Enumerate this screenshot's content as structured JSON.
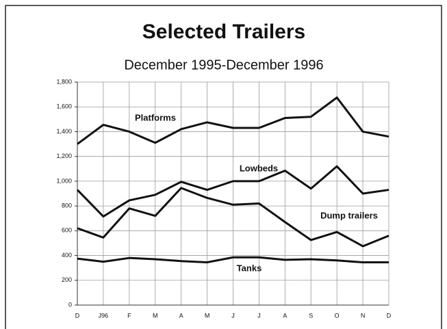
{
  "chart_data": {
    "type": "line",
    "title": "Selected Trailers",
    "subtitle": "December 1995-December 1996",
    "categories": [
      "D",
      "J96",
      "F",
      "M",
      "A",
      "M",
      "J",
      "J",
      "A",
      "S",
      "O",
      "N",
      "D"
    ],
    "series": [
      {
        "name": "Platforms",
        "color": "#111111",
        "values": [
          1300,
          1455,
          1400,
          1310,
          1420,
          1475,
          1430,
          1430,
          1510,
          1520,
          1675,
          1400,
          1360
        ]
      },
      {
        "name": "Lowbeds",
        "color": "#111111",
        "values": [
          930,
          715,
          845,
          890,
          995,
          930,
          1000,
          1000,
          1085,
          940,
          1120,
          900,
          930
        ]
      },
      {
        "name": "Dump trailers",
        "color": "#111111",
        "values": [
          620,
          545,
          780,
          720,
          945,
          865,
          810,
          820,
          670,
          525,
          590,
          475,
          560
        ]
      },
      {
        "name": "Tanks",
        "color": "#111111",
        "values": [
          375,
          350,
          380,
          370,
          355,
          345,
          385,
          385,
          365,
          370,
          360,
          345,
          345
        ]
      }
    ],
    "ylim": [
      0,
      1800
    ],
    "yticks": [
      0,
      200,
      400,
      600,
      800,
      {
        "value": 1000,
        "label": "1,000"
      },
      {
        "value": 1200,
        "label": "1,200"
      },
      {
        "value": 1400,
        "label": "1,400"
      },
      {
        "value": 1600,
        "label": "1,600"
      },
      {
        "value": 1800,
        "label": "1,800"
      }
    ],
    "grid": true
  }
}
